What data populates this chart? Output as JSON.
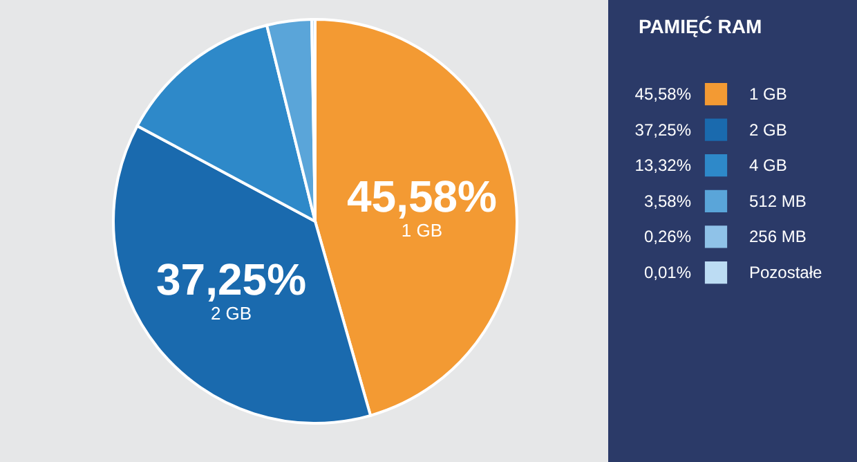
{
  "chart_data": {
    "type": "pie",
    "legend_title": "PAMIĘĆ RAM",
    "categories": [
      "1 GB",
      "2 GB",
      "4 GB",
      "512 MB",
      "256 MB",
      "Pozostałe"
    ],
    "values": [
      45.58,
      37.25,
      13.32,
      3.58,
      0.26,
      0.01
    ],
    "value_labels": [
      "45,58%",
      "37,25%",
      "13,32%",
      "3,58%",
      "0,26%",
      "0,01%"
    ],
    "colors": [
      "#f39a33",
      "#1a6aae",
      "#2e89c9",
      "#5aa5d9",
      "#8fc2e8",
      "#bcdcf3"
    ],
    "legend": "right"
  }
}
